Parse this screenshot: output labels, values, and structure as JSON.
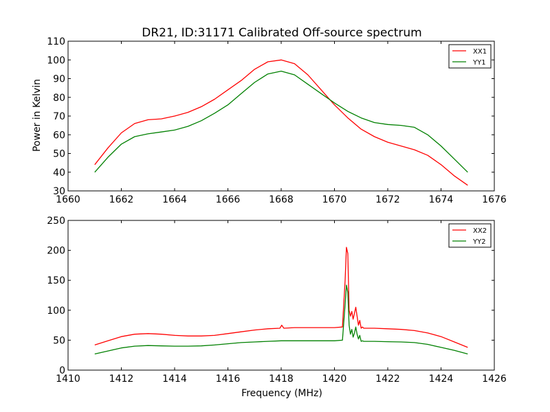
{
  "figure": {
    "title": "DR21, ID:31171 Calibrated Off-source spectrum",
    "ylabel": "Power in Kelvin",
    "xlabel": "Frequency (MHz)"
  },
  "colors": {
    "xx": "#ff0000",
    "yy": "#008000"
  },
  "chart_data": [
    {
      "type": "line",
      "title": "DR21, ID:31171 Calibrated Off-source spectrum",
      "ylabel": "Power in Kelvin",
      "xlabel": "",
      "xlim": [
        1660,
        1676
      ],
      "ylim": [
        30,
        110
      ],
      "xticks": [
        1660,
        1662,
        1664,
        1666,
        1668,
        1670,
        1672,
        1674,
        1676
      ],
      "yticks": [
        30,
        40,
        50,
        60,
        70,
        80,
        90,
        100,
        110
      ],
      "legend": "top-right",
      "grid": false,
      "series": [
        {
          "name": "XX1",
          "color": "#ff0000",
          "x": [
            1661,
            1661.5,
            1662,
            1662.5,
            1663,
            1663.5,
            1664,
            1664.5,
            1665,
            1665.5,
            1666,
            1666.5,
            1667,
            1667.5,
            1668,
            1668.5,
            1669,
            1669.5,
            1670,
            1670.5,
            1671,
            1671.5,
            1672,
            1672.5,
            1673,
            1673.5,
            1674,
            1674.5,
            1675
          ],
          "y": [
            44,
            53,
            61,
            66,
            68,
            68.5,
            70,
            72,
            75,
            79,
            84,
            89,
            95,
            99,
            100,
            98,
            92,
            84,
            76,
            69,
            63,
            59,
            56,
            54,
            52,
            49,
            44,
            38,
            33
          ]
        },
        {
          "name": "YY1",
          "color": "#008000",
          "x": [
            1661,
            1661.5,
            1662,
            1662.5,
            1663,
            1663.5,
            1664,
            1664.5,
            1665,
            1665.5,
            1666,
            1666.5,
            1667,
            1667.5,
            1668,
            1668.5,
            1669,
            1669.5,
            1670,
            1670.5,
            1671,
            1671.5,
            1672,
            1672.5,
            1673,
            1673.5,
            1674,
            1674.5,
            1675
          ],
          "y": [
            40,
            48,
            55,
            59,
            60.5,
            61.5,
            62.5,
            64.5,
            67.5,
            71.5,
            76,
            82,
            88,
            92.5,
            94,
            92,
            87,
            82,
            77,
            72.5,
            69,
            66.5,
            65.5,
            65,
            64,
            60,
            54,
            47,
            40
          ]
        }
      ]
    },
    {
      "type": "line",
      "title": "",
      "ylabel": "",
      "xlabel": "Frequency (MHz)",
      "xlim": [
        1410,
        1426
      ],
      "ylim": [
        0,
        250
      ],
      "xticks": [
        1410,
        1412,
        1414,
        1416,
        1418,
        1420,
        1422,
        1424,
        1426
      ],
      "yticks": [
        0,
        50,
        100,
        150,
        200,
        250
      ],
      "legend": "top-right",
      "grid": false,
      "series": [
        {
          "name": "XX2",
          "color": "#ff0000",
          "x": [
            1411,
            1411.5,
            1412,
            1412.5,
            1413,
            1413.5,
            1414,
            1414.5,
            1415,
            1415.5,
            1416,
            1416.5,
            1417,
            1417.5,
            1417.95,
            1418.02,
            1418.1,
            1418.5,
            1419,
            1419.5,
            1420,
            1420.3,
            1420.4,
            1420.45,
            1420.5,
            1420.55,
            1420.6,
            1420.65,
            1420.7,
            1420.75,
            1420.8,
            1420.85,
            1420.9,
            1420.95,
            1421,
            1421.05,
            1421.1,
            1421.5,
            1422,
            1422.5,
            1423,
            1423.5,
            1424,
            1424.5,
            1425
          ],
          "y": [
            42,
            49,
            56,
            60,
            61,
            60,
            58,
            57,
            57,
            58,
            61,
            64,
            67,
            69,
            70,
            75,
            70,
            71,
            71,
            71,
            71,
            72,
            150,
            205,
            195,
            100,
            90,
            98,
            85,
            95,
            105,
            90,
            75,
            83,
            70,
            72,
            70,
            70,
            69,
            68,
            66,
            62,
            56,
            47,
            38
          ]
        },
        {
          "name": "YY2",
          "color": "#008000",
          "x": [
            1411,
            1411.5,
            1412,
            1412.5,
            1413,
            1413.5,
            1414,
            1414.5,
            1415,
            1415.5,
            1416,
            1416.5,
            1417,
            1417.5,
            1418,
            1418.5,
            1419,
            1419.5,
            1420,
            1420.3,
            1420.4,
            1420.45,
            1420.5,
            1420.55,
            1420.6,
            1420.65,
            1420.7,
            1420.75,
            1420.8,
            1420.85,
            1420.9,
            1420.95,
            1421,
            1421.05,
            1421.1,
            1421.5,
            1422,
            1422.5,
            1423,
            1423.5,
            1424,
            1424.5,
            1425
          ],
          "y": [
            27,
            32,
            37,
            40,
            41,
            40.5,
            40,
            40,
            40.5,
            42,
            44,
            46,
            47,
            48,
            49,
            49,
            49,
            49,
            49,
            50,
            110,
            142,
            130,
            75,
            60,
            68,
            55,
            62,
            72,
            60,
            52,
            58,
            48,
            49,
            48,
            48,
            47.5,
            47,
            46,
            43,
            38,
            33,
            27
          ]
        }
      ]
    }
  ]
}
